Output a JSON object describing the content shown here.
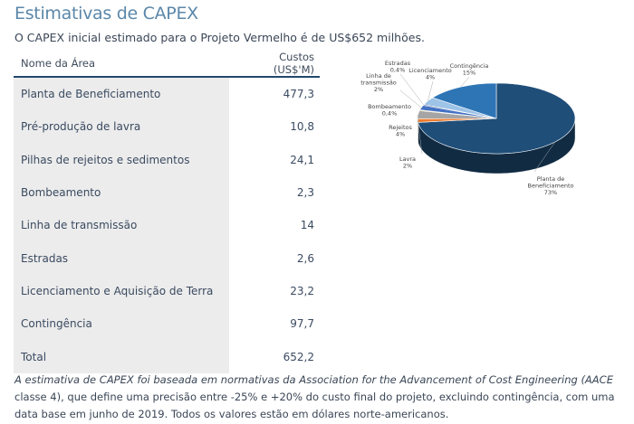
{
  "header": {
    "title": "Estimativas de CAPEX",
    "subtitle": "O CAPEX inicial estimado para o Projeto Vermelho é de US$652 milhões."
  },
  "table": {
    "columns": [
      "Nome da Área",
      "Custos (US$'M)"
    ],
    "rows": [
      {
        "name": "Planta de Beneficiamento",
        "cost": "477,3"
      },
      {
        "name": "Pré-produção de lavra",
        "cost": "10,8"
      },
      {
        "name": "Pilhas de rejeitos e sedimentos",
        "cost": "24,1"
      },
      {
        "name": "Bombeamento",
        "cost": "2,3"
      },
      {
        "name": "Linha de transmissão",
        "cost": "14"
      },
      {
        "name": "Estradas",
        "cost": "2,6"
      },
      {
        "name": "Licenciamento e Aquisição de Terra",
        "cost": "23,2"
      },
      {
        "name": "Contingência",
        "cost": "97,7"
      },
      {
        "name": "Total",
        "cost": "652,2"
      }
    ]
  },
  "footnote": {
    "italic": "A estimativa de CAPEX foi baseada em normativas da Association for the Advancement of Cost Engineering (AACE",
    "normal": " classe 4), que define uma precisão entre -25% e +20% do custo final do projeto, excluindo contingência, com uma data base em junho de 2019. Todos os valores estão em dólares norte-americanos."
  },
  "chart_data": {
    "type": "pie",
    "style": "3d",
    "slices": [
      {
        "label": [
          "Planta de",
          "Beneficiamento"
        ],
        "pct": "73%",
        "value": 477.3,
        "color": "#1f4e79"
      },
      {
        "label": [
          "Lavra"
        ],
        "pct": "2%",
        "value": 10.8,
        "color": "#ed7d31"
      },
      {
        "label": [
          "Rejeitos"
        ],
        "pct": "4%",
        "value": 24.1,
        "color": "#a5a5a5"
      },
      {
        "label": [
          "Bombeamento"
        ],
        "pct": "0,4%",
        "value": 2.3,
        "color": "#ffc000"
      },
      {
        "label": [
          "Linha de",
          "transmissão"
        ],
        "pct": "2%",
        "value": 14,
        "color": "#4472c4"
      },
      {
        "label": [
          "Estradas"
        ],
        "pct": "0,4%",
        "value": 2.6,
        "color": "#264478"
      },
      {
        "label": [
          "Licenciamento"
        ],
        "pct": "4%",
        "value": 23.2,
        "color": "#9dc3e6"
      },
      {
        "label": [
          "Contingência"
        ],
        "pct": "15%",
        "value": 97.7,
        "color": "#2e75b6"
      }
    ]
  }
}
